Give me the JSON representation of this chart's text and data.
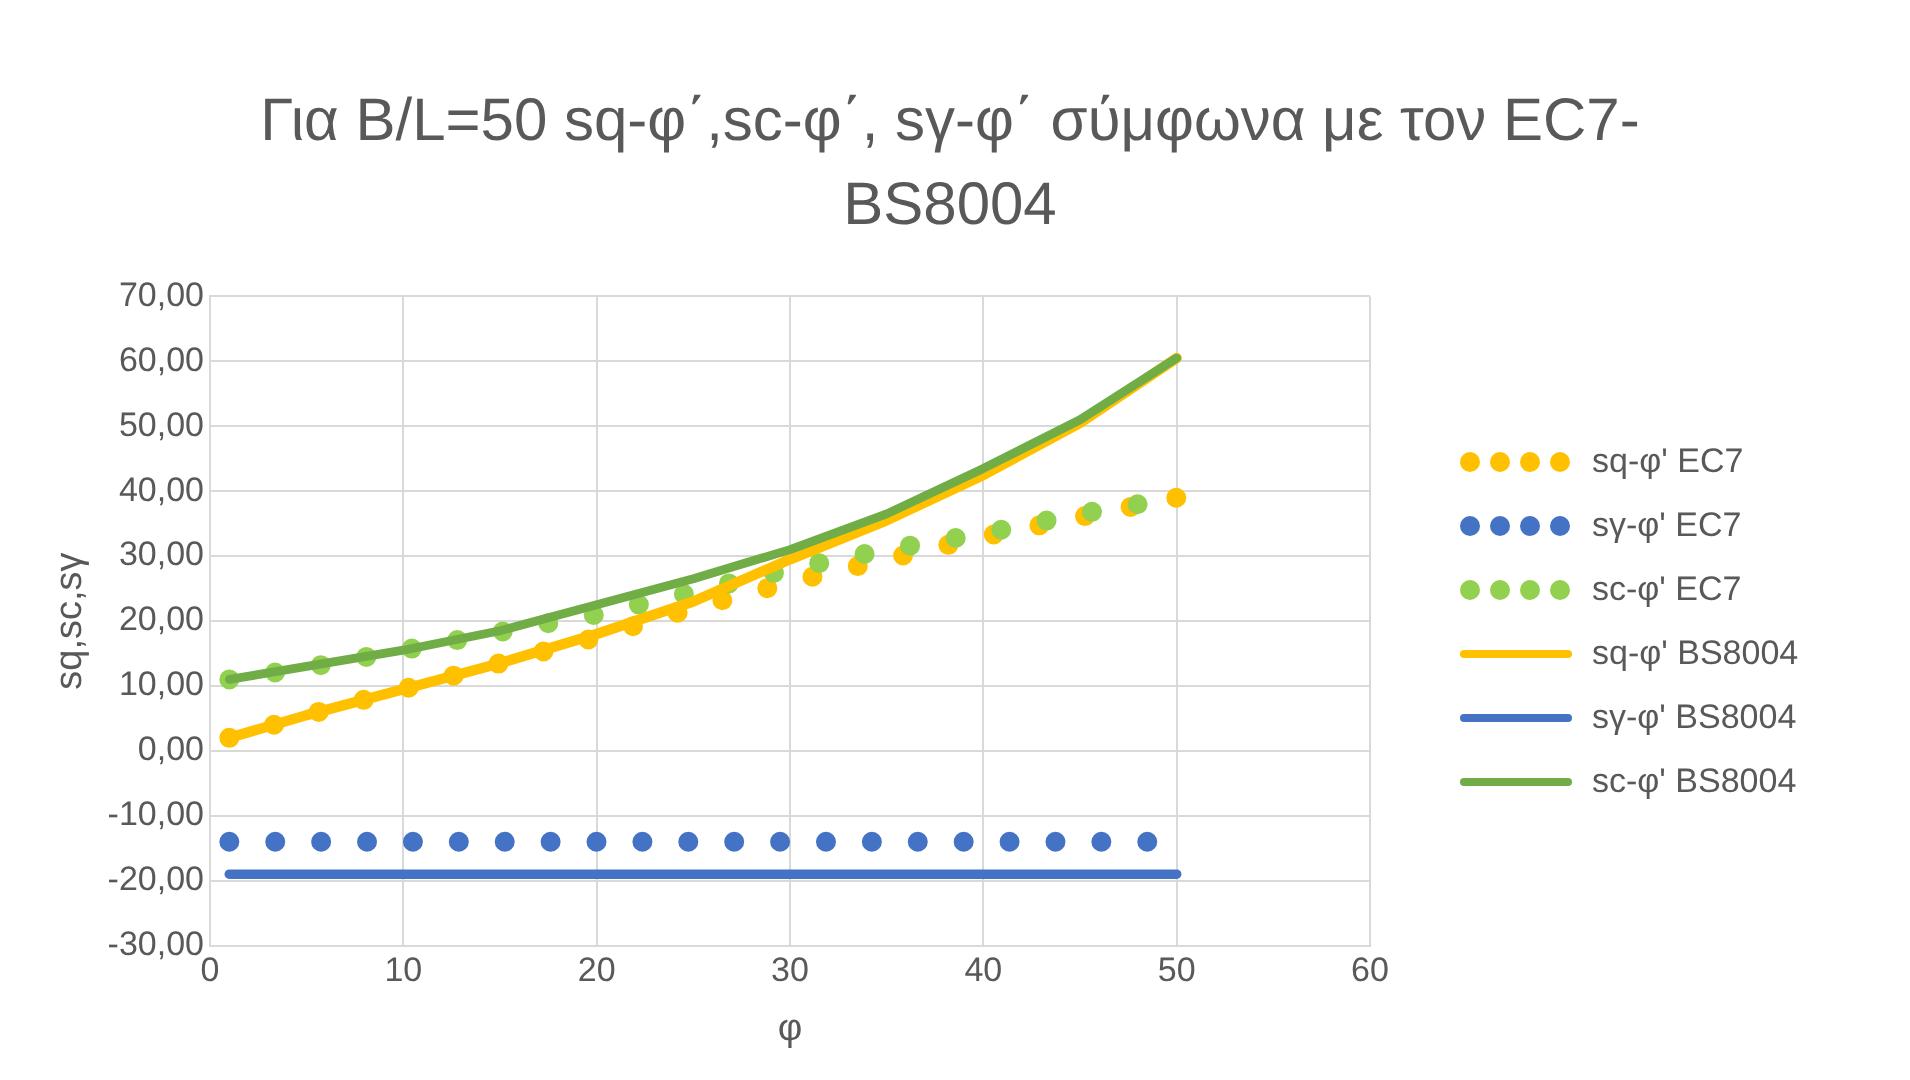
{
  "chart_data": {
    "type": "line",
    "title": "Για B/L=50 sq-φ΄,sc-φ΄, sγ-φ΄ σύμφωνα με τον EC7-BS8004",
    "xlabel": "φ",
    "ylabel": "sq,sc,sγ",
    "xlim": [
      0,
      60
    ],
    "xticks": [
      0,
      10,
      20,
      30,
      40,
      50,
      60
    ],
    "ylim": [
      -30,
      70
    ],
    "yticks": [
      {
        "value": -30,
        "label": "-30,00"
      },
      {
        "value": -20,
        "label": "-20,00"
      },
      {
        "value": -10,
        "label": "-10,00"
      },
      {
        "value": 0,
        "label": "0,00"
      },
      {
        "value": 10,
        "label": "10,00"
      },
      {
        "value": 20,
        "label": "20,00"
      },
      {
        "value": 30,
        "label": "30,00"
      },
      {
        "value": 40,
        "label": "40,00"
      },
      {
        "value": 50,
        "label": "50,00"
      },
      {
        "value": 60,
        "label": "60,00"
      },
      {
        "value": 70,
        "label": "70,00"
      }
    ],
    "grid": true,
    "legend": "right",
    "marker": "none",
    "series": [
      {
        "name": "sq-φ' EC7",
        "color": "#ffc000",
        "line_style": "dotted",
        "x": [
          1,
          5,
          10,
          15,
          20,
          25,
          30,
          35,
          40,
          45,
          50
        ],
        "values": [
          2,
          5.5,
          9.5,
          13.5,
          17.5,
          22,
          26,
          29.5,
          33,
          36,
          39
        ]
      },
      {
        "name": "sγ-φ' EC7",
        "color": "#4472c4",
        "line_style": "dotted",
        "x": [
          1,
          10,
          20,
          30,
          40,
          48.5
        ],
        "values": [
          -14,
          -14,
          -14,
          -14,
          -14,
          -14
        ]
      },
      {
        "name": "sc-φ' EC7",
        "color": "#92d050",
        "line_style": "dotted",
        "x": [
          1,
          5,
          10,
          15,
          20,
          25,
          30,
          35,
          40,
          45,
          48
        ],
        "values": [
          11,
          12.8,
          15.5,
          18.3,
          21,
          24.5,
          28,
          31,
          33.5,
          36.5,
          38
        ]
      },
      {
        "name": "sq-φ' BS8004",
        "color": "#ffc000",
        "line_style": "solid",
        "x": [
          1,
          5,
          10,
          15,
          20,
          25,
          30,
          35,
          40,
          45,
          50
        ],
        "values": [
          2,
          5.5,
          9.5,
          13.5,
          18,
          23,
          29.5,
          35.5,
          42.5,
          50.5,
          60.5
        ]
      },
      {
        "name": "sγ-φ' BS8004",
        "color": "#4472c4",
        "line_style": "solid",
        "x": [
          1,
          50
        ],
        "values": [
          -19,
          -19
        ]
      },
      {
        "name": "sc-φ' BS8004",
        "color": "#70ad47",
        "line_style": "solid",
        "x": [
          1,
          5,
          10,
          15,
          20,
          25,
          30,
          35,
          40,
          45,
          50
        ],
        "values": [
          11,
          13,
          15.5,
          18.5,
          22.5,
          26.5,
          31,
          36.5,
          43.5,
          51,
          60.5
        ]
      }
    ]
  }
}
